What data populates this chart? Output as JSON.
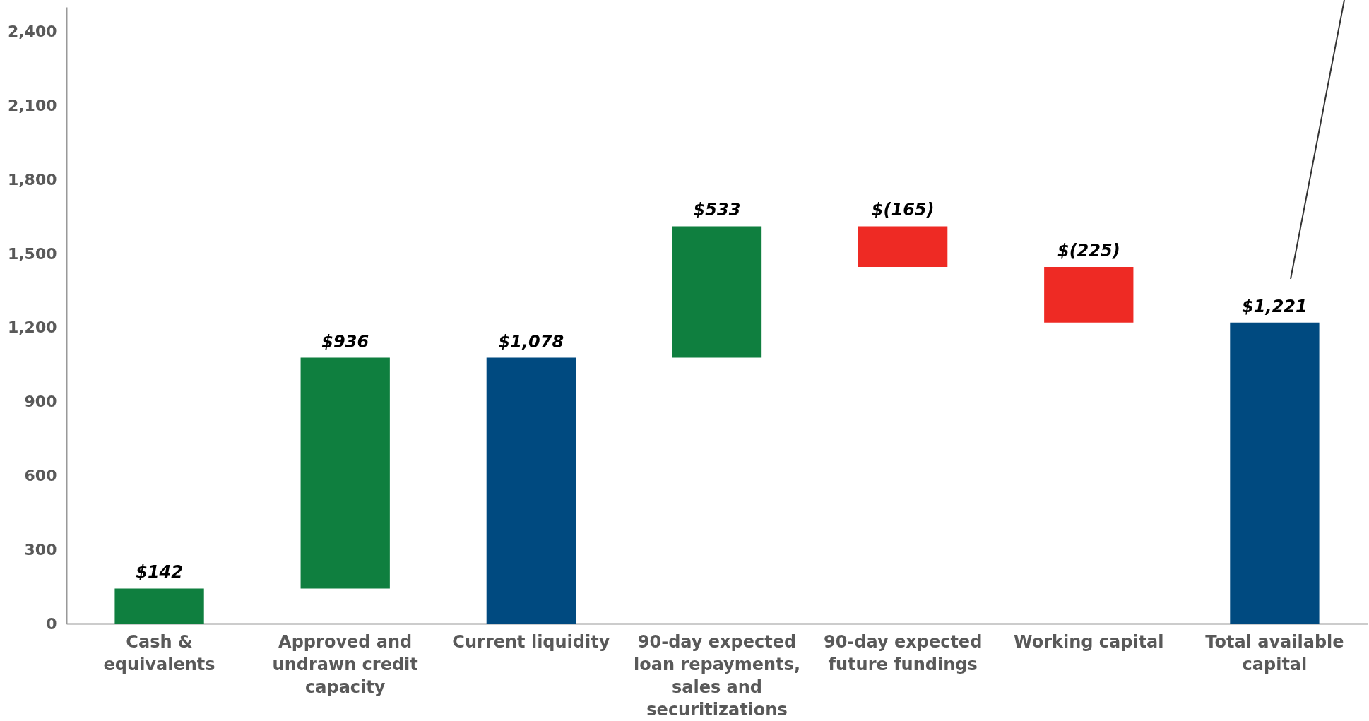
{
  "chart_data": {
    "type": "bar",
    "categories": [
      "Cash & equivalents",
      "Approved and undrawn credit capacity",
      "Current liquidity",
      "90-day expected loan repayments, sales and securitizations",
      "90-day expected future fundings",
      "Working capital",
      "Total available capital"
    ],
    "values": [
      142,
      936,
      1078,
      533,
      -165,
      -225,
      1221
    ],
    "base": [
      0,
      142,
      0,
      1078,
      1611,
      1446,
      0
    ],
    "colors": [
      "#0f7f3f",
      "#0f7f3f",
      "#004a80",
      "#0f7f3f",
      "#ee2a24",
      "#ee2a24",
      "#004a80"
    ],
    "value_labels": [
      "$142",
      "$936",
      "$1,078",
      "$533",
      "$(165)",
      "$(225)",
      "$1,221"
    ],
    "ylim": [
      0,
      2500
    ],
    "yticks": [
      0,
      300,
      600,
      900,
      {
        "value": 1200,
        "label": "1,200"
      },
      {
        "value": 1500,
        "label": "1,500"
      },
      {
        "value": 1800,
        "label": "1,800"
      },
      {
        "value": 2100,
        "label": "2,100"
      },
      {
        "value": 2400,
        "label": "2,400"
      }
    ]
  }
}
